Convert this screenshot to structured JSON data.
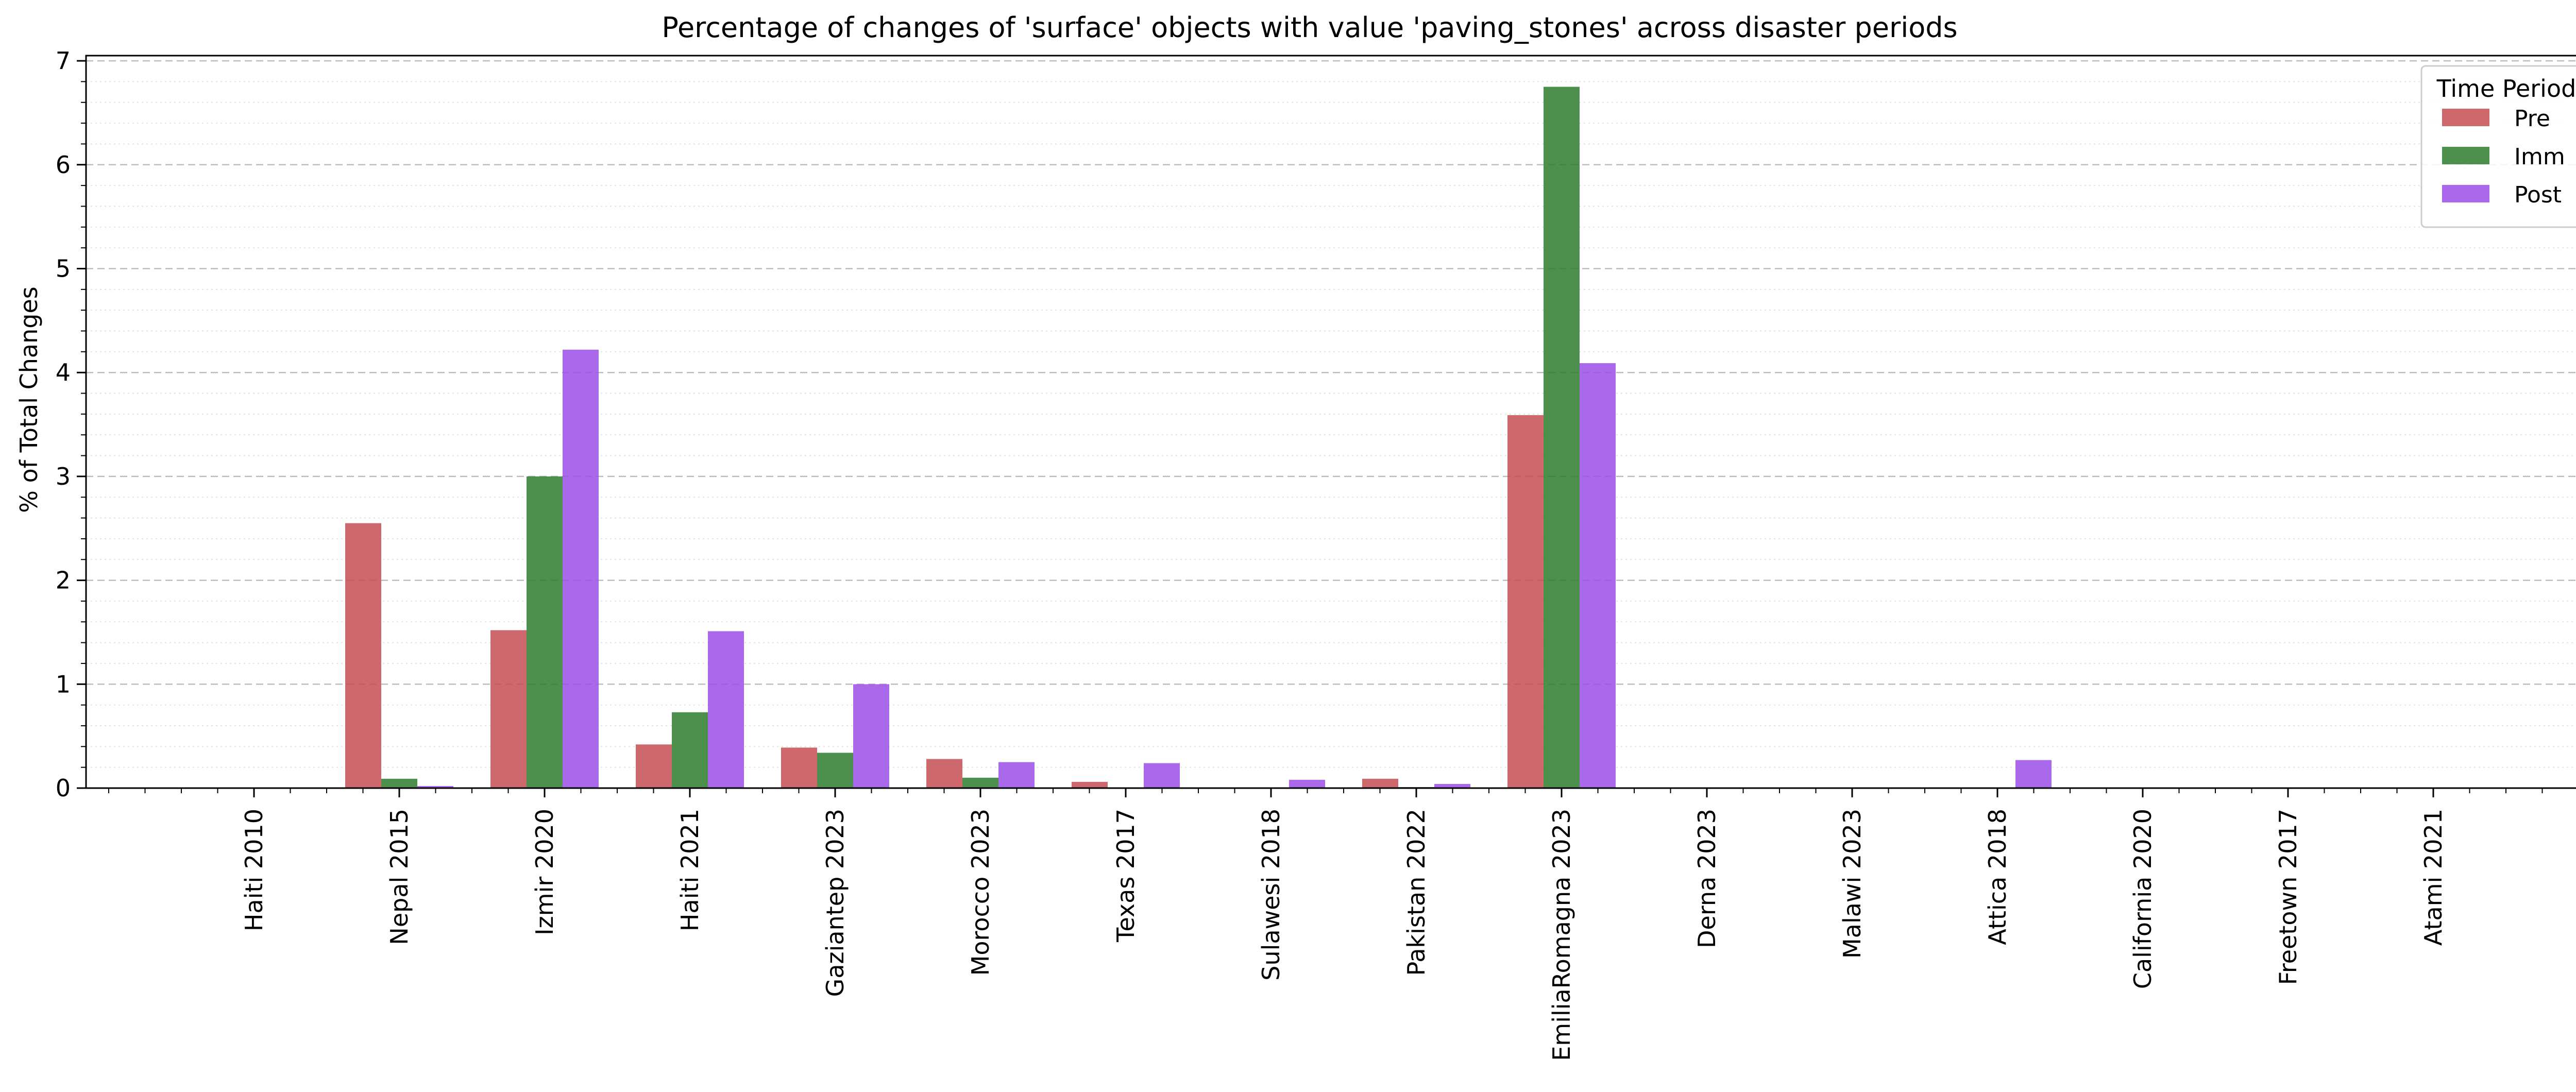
{
  "chart_data": {
    "type": "bar",
    "title": "Percentage of changes of 'surface' objects with value 'paving_stones' across disaster periods",
    "xlabel": "",
    "ylabel": "% of Total Changes",
    "ylim": [
      0,
      7.05
    ],
    "yticks": [
      "0",
      "1",
      "2",
      "3",
      "4",
      "5",
      "6",
      "7"
    ],
    "grid": "horizontal, dashed major and dotted minor",
    "legend": {
      "title": "Time Period",
      "placement": "top-right"
    },
    "categories": [
      "Haiti 2010",
      "Nepal 2015",
      "Izmir 2020",
      "Haiti 2021",
      "Gaziantep 2023",
      "Morocco 2023",
      "Texas 2017",
      "Sulawesi 2018",
      "Pakistan 2022",
      "EmiliaRomagna 2023",
      "Derna 2023",
      "Malawi 2023",
      "Attica 2018",
      "California 2020",
      "Freetown 2017",
      "Atami 2021"
    ],
    "series": [
      {
        "name": "Pre",
        "color": "#c44e52",
        "values": [
          0,
          2.55,
          1.52,
          0.42,
          0.39,
          0.28,
          0.06,
          0,
          0.09,
          3.59,
          0,
          0,
          0,
          0,
          0,
          0
        ]
      },
      {
        "name": "Imm",
        "color": "#2e7d2e",
        "values": [
          0,
          0.09,
          3.0,
          0.73,
          0.34,
          0.1,
          0,
          0,
          0.01,
          6.75,
          0,
          0,
          0,
          0,
          0,
          0
        ]
      },
      {
        "name": "Post",
        "color": "#9b4de6",
        "values": [
          0,
          0.02,
          4.22,
          1.51,
          1.0,
          0.25,
          0.24,
          0.08,
          0.04,
          4.09,
          0,
          0,
          0.27,
          0,
          0,
          0
        ]
      }
    ]
  }
}
